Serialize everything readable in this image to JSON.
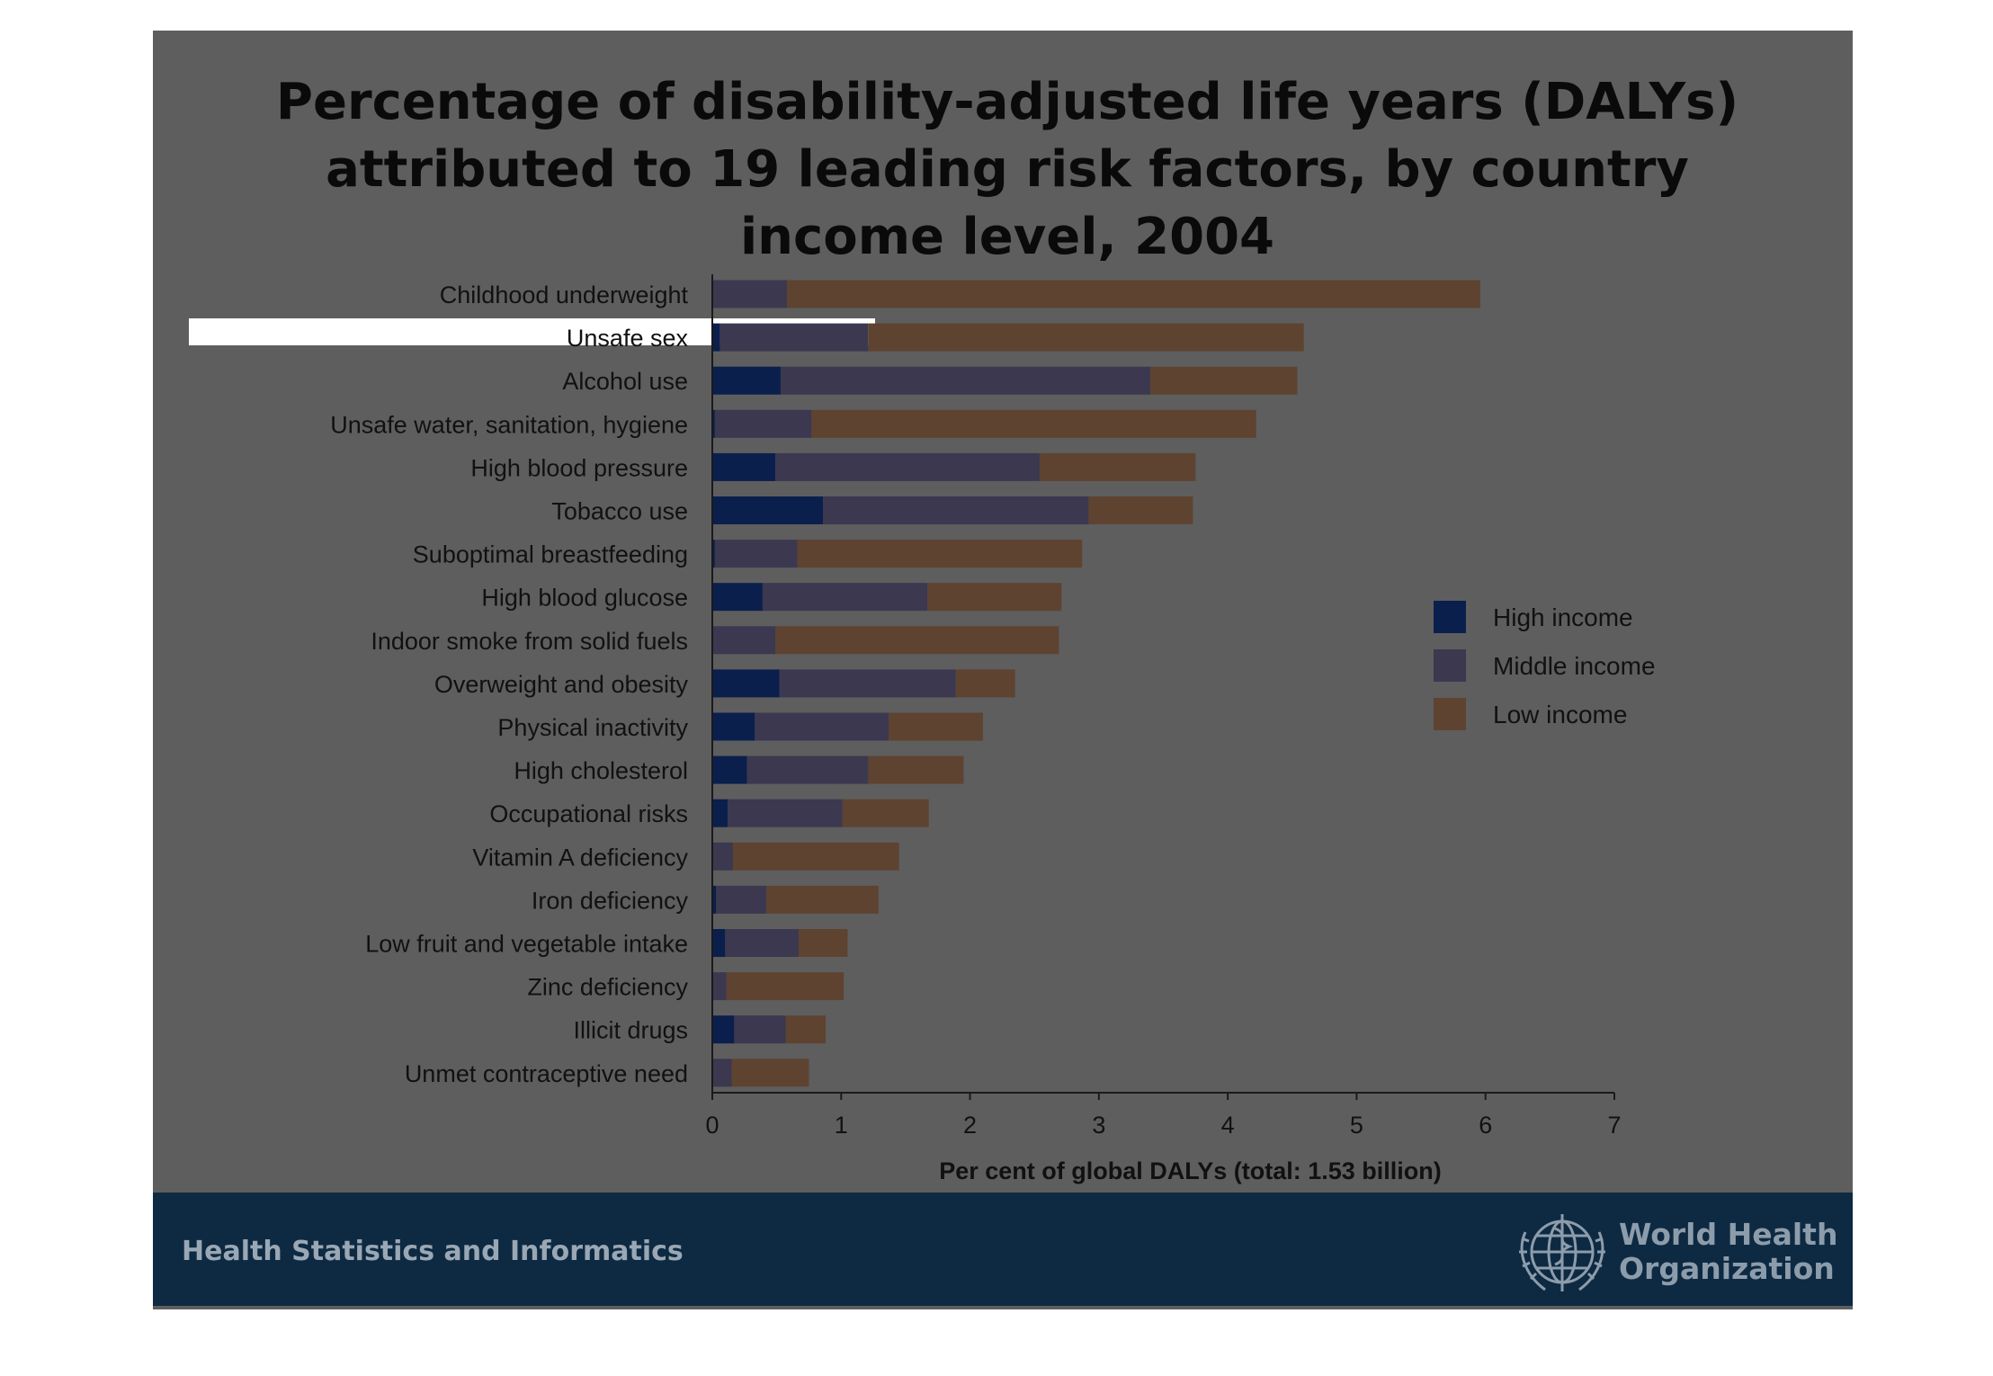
{
  "title": "Percentage of disability-adjusted life years (DALYs) attributed to 19 leading risk factors, by country income level, 2004",
  "footer": {
    "left_text": "Health Statistics and Informatics",
    "org_line1": "World Health",
    "org_line2": "Organization",
    "logo_icon": "who-emblem-icon"
  },
  "colors": {
    "slide_bg": "#5e5e5e",
    "footer_bg": "#0d2a42",
    "high_income": "#0b1f4d",
    "middle_income": "#3b3850",
    "low_income": "#5e4331"
  },
  "chart_data": {
    "type": "bar",
    "orientation": "horizontal",
    "stacked": true,
    "title": "Percentage of disability-adjusted life years (DALYs) attributed to 19 leading risk factors, by country income level, 2004",
    "xlabel": "Per cent of global DALYs (total: 1.53 billion)",
    "ylabel": "",
    "xlim": [
      0,
      7
    ],
    "xticks": [
      "0",
      "1",
      "2",
      "3",
      "4",
      "5",
      "6",
      "7"
    ],
    "legend_position": "right",
    "grid": false,
    "categories": [
      "Childhood underweight",
      "Unsafe sex",
      "Alcohol use",
      "Unsafe water, sanitation, hygiene",
      "High blood pressure",
      "Tobacco use",
      "Suboptimal breastfeeding",
      "High blood glucose",
      "Indoor smoke from solid fuels",
      "Overweight and obesity",
      "Physical inactivity",
      "High cholesterol",
      "Occupational risks",
      "Vitamin A deficiency",
      "Iron deficiency",
      "Low fruit and vegetable intake",
      "Zinc deficiency",
      "Illicit drugs",
      "Unmet contraceptive need"
    ],
    "series": [
      {
        "name": "High income",
        "color": "#0b1f4d",
        "values": [
          0.0,
          0.06,
          0.53,
          0.02,
          0.49,
          0.86,
          0.02,
          0.39,
          0.0,
          0.52,
          0.33,
          0.27,
          0.12,
          0.0,
          0.03,
          0.1,
          0.0,
          0.17,
          0.0
        ]
      },
      {
        "name": "Middle income",
        "color": "#3b3850",
        "values": [
          0.58,
          1.15,
          2.87,
          0.75,
          2.05,
          2.06,
          0.64,
          1.28,
          0.49,
          1.37,
          1.04,
          0.94,
          0.89,
          0.16,
          0.39,
          0.57,
          0.11,
          0.4,
          0.15
        ]
      },
      {
        "name": "Low income",
        "color": "#5e4331",
        "values": [
          5.38,
          3.38,
          1.14,
          3.45,
          1.21,
          0.81,
          2.21,
          1.04,
          2.2,
          0.46,
          0.73,
          0.74,
          0.67,
          1.29,
          0.87,
          0.38,
          0.91,
          0.31,
          0.6
        ]
      }
    ]
  }
}
